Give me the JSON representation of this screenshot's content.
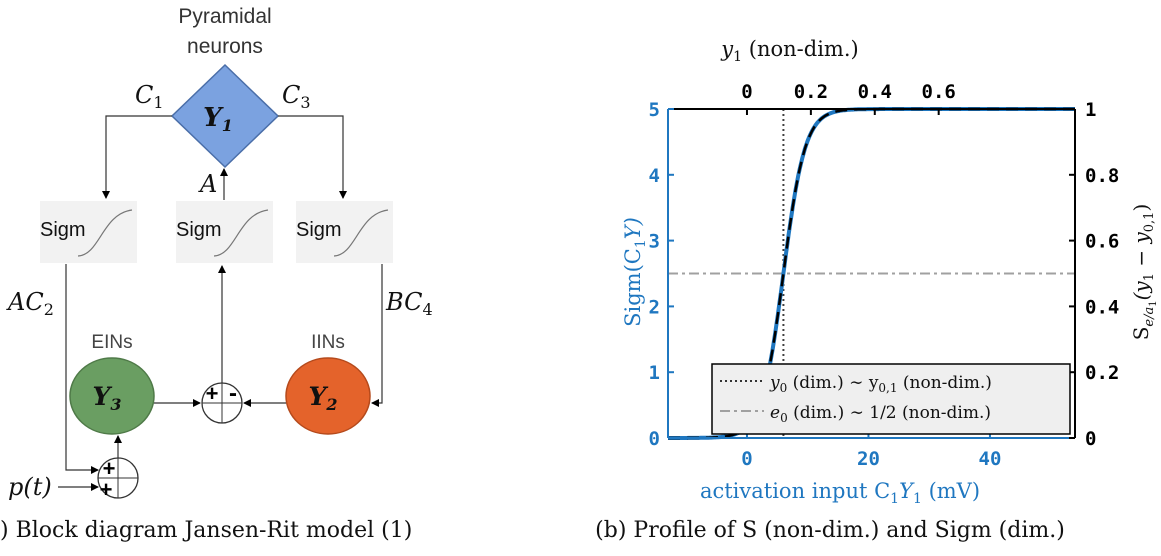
{
  "diagram": {
    "pyramidal_label_1": "Pyramidal",
    "pyramidal_label_2": "neurons",
    "y1": "Y",
    "y1_sub": "1",
    "y2": "Y",
    "y2_sub": "2",
    "y3": "Y",
    "y3_sub": "3",
    "c1": "C",
    "c1_sub": "1",
    "c3": "C",
    "c3_sub": "3",
    "a": "A",
    "ac2": "AC",
    "ac2_sub": "2",
    "bc4": "BC",
    "bc4_sub": "4",
    "sigm": "Sigm",
    "eins": "EINs",
    "iins": "IINs",
    "pt": "p(t)",
    "caption": ") Block diagram Jansen-Rit model (1)",
    "colors": {
      "y1": "#7ba2e0",
      "y2": "#e4632b",
      "y3": "#6a9e62"
    }
  },
  "chart_data": {
    "type": "line",
    "title_top": "y",
    "title_top_sub": "1",
    "title_top_rest": " (non-dim.)",
    "xlabel": "activation input C",
    "xlabel_sub": "1",
    "xlabel_y": "Y",
    "xlabel_y_sub": "1",
    "xlabel_rest": " (mV)",
    "ylabel_left": "Sigm(C",
    "ylabel_left_sub": "1",
    "ylabel_left_rest": "Y)",
    "ylabel_right": "S",
    "ylabel_right_sub": "e/a",
    "ylabel_right_subsub": "1",
    "ylabel_right_rest": "(y",
    "ylabel_right_rest_sub": "1",
    "ylabel_right_rest2": " − y",
    "ylabel_right_rest2_sub": "0,1",
    "ylabel_right_end": ")",
    "xlim": [
      -13,
      54
    ],
    "ylim": [
      0,
      5
    ],
    "xticks": [
      0,
      20,
      40
    ],
    "yticks_left": [
      0,
      1,
      2,
      3,
      4,
      5
    ],
    "xticks_top": [
      0,
      0.2,
      0.4,
      0.6
    ],
    "xticks_top_labels": [
      "0",
      "0.2",
      "0.4",
      "0.6"
    ],
    "yticks_right": [
      0,
      0.2,
      0.4,
      0.6,
      0.8,
      1
    ],
    "yticks_right_labels": [
      "0",
      "0.2",
      "0.4",
      "0.6",
      "0.8",
      "1"
    ],
    "top_axis_scale_mv_per_unit": 52.6,
    "sigmoid": {
      "e0": 2.5,
      "v0": 6,
      "r": 0.56
    },
    "vline_x": 6,
    "hline_y": 2.5,
    "legend": [
      {
        "text_a": "y",
        "text_a_sub": "0",
        "text_b": " (dim.) ∼ y",
        "text_b_sub": "0,1",
        "text_c": " (non-dim.)",
        "style": "dotted"
      },
      {
        "text_a": "e",
        "text_a_sub": "0",
        "text_b": " (dim.) ∼ 1/2 (non-dim.)",
        "text_b_sub": "",
        "text_c": "",
        "style": "dashdot"
      }
    ],
    "legend_position": "bottom-right",
    "caption": "(b) Profile of S (non-dim.) and Sigm (dim.)",
    "colors": {
      "left_axis": "#1f77c0",
      "curve_solid": "#1f77c0",
      "curve_dash": "#000000",
      "hline": "#a0a0a0",
      "vline": "#404040"
    }
  }
}
